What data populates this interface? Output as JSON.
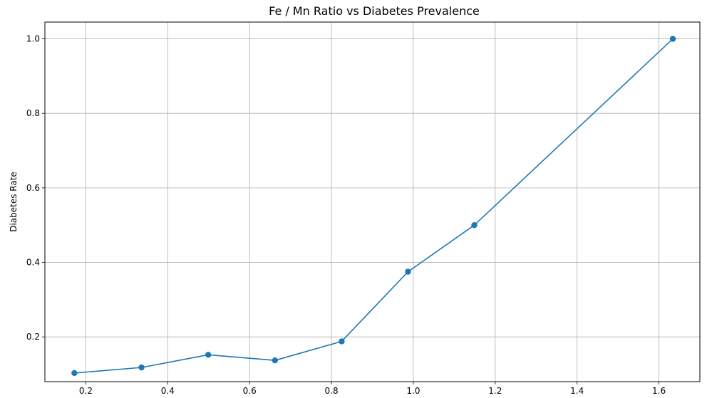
{
  "chart_data": {
    "type": "line",
    "title": "Fe / Mn Ratio vs Diabetes Prevalence",
    "xlabel": "",
    "ylabel": "Diabetes Rate",
    "xlim": [
      0.1,
      1.7
    ],
    "ylim": [
      0.08,
      1.045
    ],
    "x_ticks": [
      0.2,
      0.4,
      0.6,
      0.8,
      1.0,
      1.2,
      1.4,
      1.6
    ],
    "x_tick_labels": [
      "0.2",
      "0.4",
      "0.6",
      "0.8",
      "1.0",
      "1.2",
      "1.4",
      "1.6"
    ],
    "y_ticks": [
      0.2,
      0.4,
      0.6,
      0.8,
      1.0
    ],
    "y_tick_labels": [
      "0.2",
      "0.4",
      "0.6",
      "0.8",
      "1.0"
    ],
    "grid": true,
    "series": [
      {
        "color": "#1f77b4",
        "points": [
          {
            "x": 0.172,
            "y": 0.103
          },
          {
            "x": 0.336,
            "y": 0.118
          },
          {
            "x": 0.499,
            "y": 0.152
          },
          {
            "x": 0.662,
            "y": 0.137
          },
          {
            "x": 0.825,
            "y": 0.188
          },
          {
            "x": 0.987,
            "y": 0.375
          },
          {
            "x": 1.149,
            "y": 0.5
          },
          {
            "x": 1.634,
            "y": 1.0
          }
        ],
        "line_segment_count": 7
      }
    ]
  }
}
